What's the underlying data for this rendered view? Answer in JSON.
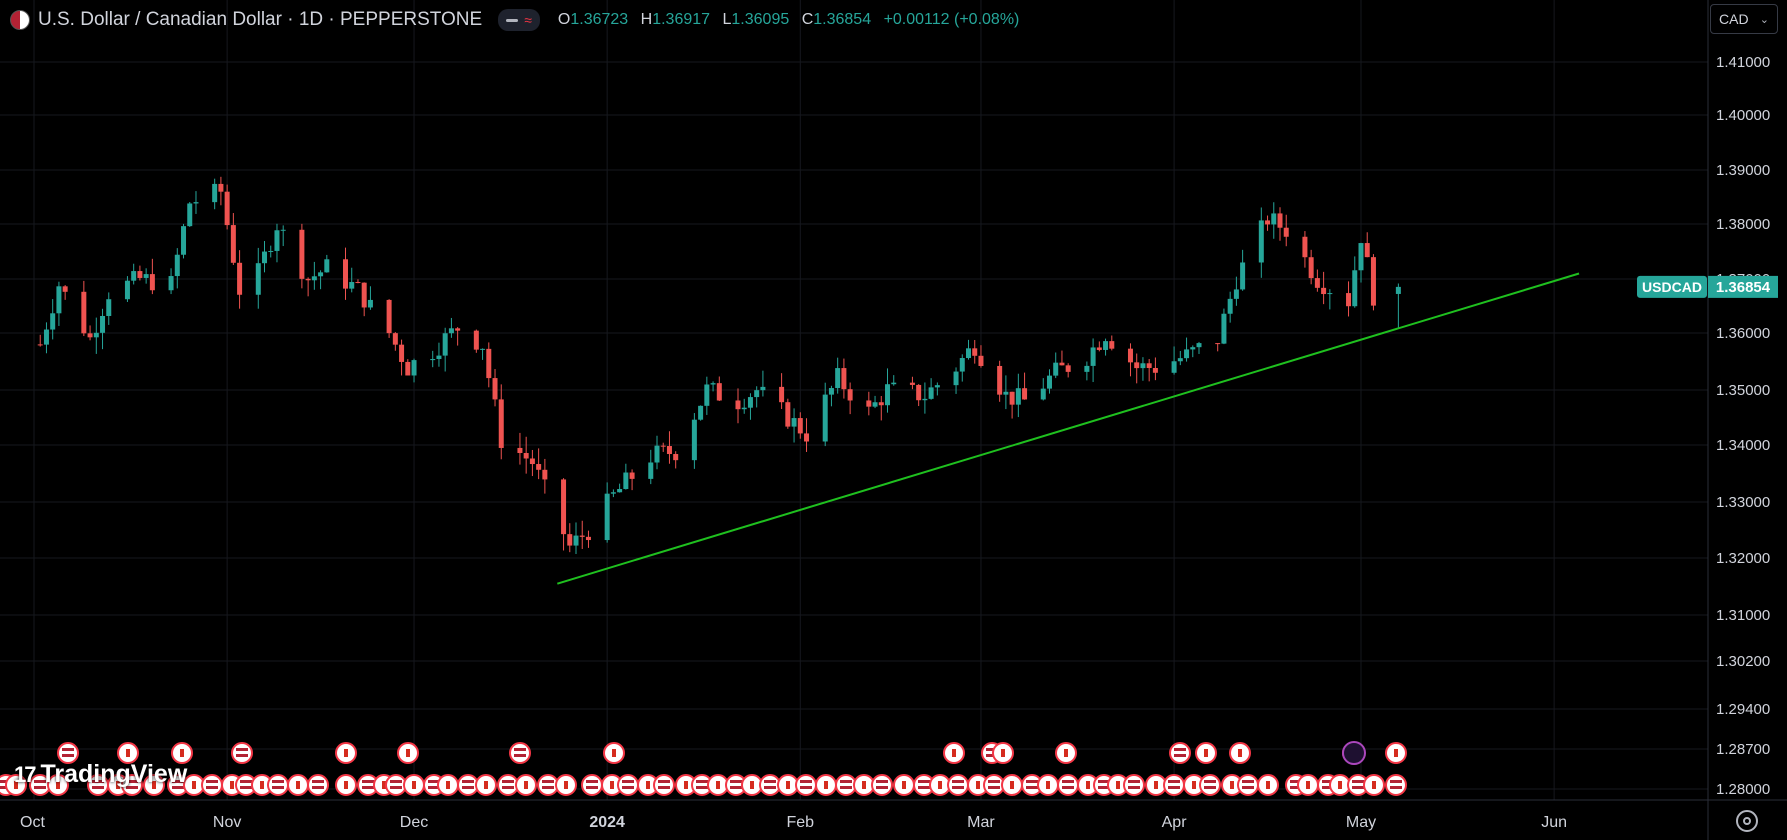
{
  "header": {
    "symbol_title": "U.S. Dollar / Canadian Dollar · 1D · PEPPERSTONE",
    "ohlc": [
      {
        "key": "O",
        "value": "1.36723"
      },
      {
        "key": "H",
        "value": "1.36917"
      },
      {
        "key": "L",
        "value": "1.36095"
      },
      {
        "key": "C",
        "value": "1.36854"
      }
    ],
    "change": "+0.00112 (+0.08%)"
  },
  "currency_selector": {
    "value": "CAD"
  },
  "branding": {
    "name": "TradingView"
  },
  "price_label": {
    "symbol": "USDCAD",
    "price": "1.36854"
  },
  "colors": {
    "up": "#26a69a",
    "down": "#ef5350",
    "trendline": "#1fc01f",
    "background": "#000000",
    "grid": "#16181e"
  },
  "chart_data": {
    "type": "candlestick",
    "symbol": "USDCAD",
    "timeframe": "1D",
    "price_axis": {
      "ticks": [
        "1.41000",
        "1.40000",
        "1.39000",
        "1.38000",
        "1.37000",
        "1.36000",
        "1.35000",
        "1.34000",
        "1.33000",
        "1.32000",
        "1.31000",
        "1.30200",
        "1.29400",
        "1.28700",
        "1.28000"
      ],
      "ylim": [
        1.277,
        1.415
      ]
    },
    "time_axis": {
      "ticks": [
        "Oct",
        "Nov",
        "Dec",
        "2024",
        "Feb",
        "Mar",
        "Apr",
        "May",
        "Jun"
      ],
      "xlim": [
        "2023-09-30",
        "2024-06-11"
      ]
    },
    "close_path": [
      [
        "2023-10-02",
        1.358
      ],
      [
        "2023-10-05",
        1.369
      ],
      [
        "2023-10-10",
        1.359
      ],
      [
        "2023-10-13",
        1.3675
      ],
      [
        "2023-10-18",
        1.37
      ],
      [
        "2023-10-23",
        1.369
      ],
      [
        "2023-10-26",
        1.384
      ],
      [
        "2023-10-31",
        1.386
      ],
      [
        "2023-11-03",
        1.368
      ],
      [
        "2023-11-06",
        1.371
      ],
      [
        "2023-11-09",
        1.38
      ],
      [
        "2023-11-14",
        1.37
      ],
      [
        "2023-11-17",
        1.372
      ],
      [
        "2023-11-22",
        1.368
      ],
      [
        "2023-11-27",
        1.36
      ],
      [
        "2023-11-30",
        1.354
      ],
      [
        "2023-12-04",
        1.357
      ],
      [
        "2023-12-08",
        1.361
      ],
      [
        "2023-12-12",
        1.358
      ],
      [
        "2023-12-15",
        1.341
      ],
      [
        "2023-12-20",
        1.337
      ],
      [
        "2023-12-26",
        1.322
      ],
      [
        "2023-12-29",
        1.325
      ],
      [
        "2024-01-02",
        1.331
      ],
      [
        "2024-01-08",
        1.338
      ],
      [
        "2024-01-12",
        1.339
      ],
      [
        "2024-01-17",
        1.35
      ],
      [
        "2024-01-22",
        1.348
      ],
      [
        "2024-01-25",
        1.35
      ],
      [
        "2024-01-30",
        1.345
      ],
      [
        "2024-02-02",
        1.342
      ],
      [
        "2024-02-07",
        1.352
      ],
      [
        "2024-02-12",
        1.346
      ],
      [
        "2024-02-15",
        1.35
      ],
      [
        "2024-02-21",
        1.349
      ],
      [
        "2024-02-26",
        1.354
      ],
      [
        "2024-02-29",
        1.358
      ],
      [
        "2024-03-05",
        1.349
      ],
      [
        "2024-03-08",
        1.348
      ],
      [
        "2024-03-13",
        1.353
      ],
      [
        "2024-03-18",
        1.356
      ],
      [
        "2024-03-21",
        1.36
      ],
      [
        "2024-03-26",
        1.354
      ],
      [
        "2024-03-29",
        1.354
      ],
      [
        "2024-04-03",
        1.356
      ],
      [
        "2024-04-08",
        1.359
      ],
      [
        "2024-04-11",
        1.37
      ],
      [
        "2024-04-16",
        1.381
      ],
      [
        "2024-04-19",
        1.379
      ],
      [
        "2024-04-24",
        1.37
      ],
      [
        "2024-04-29",
        1.366
      ],
      [
        "2024-05-01",
        1.378
      ],
      [
        "2024-05-03",
        1.367
      ],
      [
        "2024-05-06",
        1.3685
      ]
    ],
    "trendline": {
      "start": [
        "2023-12-24",
        1.3155
      ],
      "end": [
        "2024-06-05",
        1.371
      ]
    },
    "last_price": 1.36854,
    "grid": true
  }
}
